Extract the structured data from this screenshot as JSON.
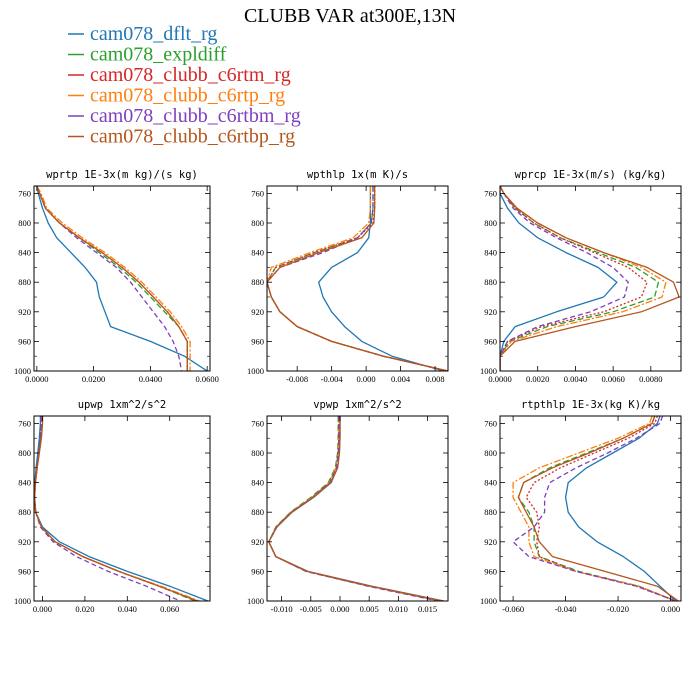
{
  "title": "CLUBB VAR at300E,13N",
  "series": [
    {
      "name": "cam078_dflt_rg",
      "color": "#1f77b4",
      "dash": ""
    },
    {
      "name": "cam078_expldiff",
      "color": "#2ca02c",
      "dash": "6,3"
    },
    {
      "name": "cam078_clubb_c6rtm_rg",
      "color": "#d62728",
      "dash": "2,2"
    },
    {
      "name": "cam078_clubb_c6rtp_rg",
      "color": "#ff7f0e",
      "dash": "7,2,2,2"
    },
    {
      "name": "cam078_clubb_c6rtbm_rg",
      "color": "#7f3fbf",
      "dash": "5,3"
    },
    {
      "name": "cam078_clubb_c6rtbp_rg",
      "color": "#b5561e",
      "dash": ""
    }
  ],
  "chart_data": [
    {
      "type": "line",
      "title": "wprtp  1E-3x(m kg)/(s kg)",
      "xlim": [
        -0.001,
        0.061
      ],
      "xticks": [
        0.0,
        0.02,
        0.04,
        0.06
      ],
      "xtick_labels": [
        "0.0000",
        "0.0200",
        "0.0400",
        "0.0600"
      ],
      "ylim": [
        1000,
        750
      ],
      "yticks": [
        760,
        800,
        840,
        880,
        920,
        960,
        1000
      ],
      "y": [
        750,
        760,
        780,
        800,
        820,
        840,
        860,
        880,
        900,
        920,
        940,
        960,
        980,
        1000
      ],
      "series": [
        [
          0.0,
          0.0005,
          0.002,
          0.004,
          0.007,
          0.012,
          0.017,
          0.021,
          0.022,
          0.024,
          0.026,
          0.04,
          0.052,
          0.06
        ],
        [
          0.0,
          0.001,
          0.003,
          0.008,
          0.015,
          0.022,
          0.029,
          0.035,
          0.04,
          0.045,
          0.05,
          0.053,
          0.053,
          0.053
        ],
        [
          0.0,
          0.001,
          0.003,
          0.008,
          0.015,
          0.023,
          0.03,
          0.036,
          0.041,
          0.046,
          0.05,
          0.053,
          0.053,
          0.053
        ],
        [
          0.0,
          0.0015,
          0.0035,
          0.009,
          0.016,
          0.024,
          0.031,
          0.037,
          0.042,
          0.047,
          0.051,
          0.054,
          0.054,
          0.054
        ],
        [
          0.0,
          0.001,
          0.003,
          0.008,
          0.014,
          0.021,
          0.028,
          0.033,
          0.037,
          0.041,
          0.045,
          0.048,
          0.05,
          0.051
        ],
        [
          0.0,
          0.001,
          0.003,
          0.008,
          0.015,
          0.023,
          0.03,
          0.036,
          0.041,
          0.046,
          0.05,
          0.053,
          0.053,
          0.053
        ]
      ]
    },
    {
      "type": "line",
      "title": "wpthlp  1x(m K)/s",
      "xlim": [
        -0.0115,
        0.0095
      ],
      "xticks": [
        -0.008,
        -0.004,
        0.0,
        0.004,
        0.008
      ],
      "xtick_labels": [
        "-0.008",
        "-0.004",
        "0.000",
        "0.004",
        "0.008"
      ],
      "ylim": [
        1000,
        750
      ],
      "yticks": [
        760,
        800,
        840,
        880,
        920,
        960,
        1000
      ],
      "y": [
        750,
        760,
        780,
        800,
        820,
        840,
        860,
        880,
        900,
        920,
        940,
        960,
        980,
        1000
      ],
      "series": [
        [
          0.0005,
          0.0005,
          0.0005,
          0.0005,
          0.0003,
          -0.001,
          -0.004,
          -0.0055,
          -0.005,
          -0.004,
          -0.0025,
          -0.0005,
          0.003,
          0.009
        ],
        [
          0.0008,
          0.0008,
          0.0008,
          0.0006,
          -0.001,
          -0.006,
          -0.0105,
          -0.0115,
          -0.011,
          -0.01,
          -0.008,
          -0.004,
          0.002,
          0.0095
        ],
        [
          0.001,
          0.001,
          0.001,
          0.0008,
          -0.001,
          -0.006,
          -0.0105,
          -0.0115,
          -0.011,
          -0.01,
          -0.008,
          -0.004,
          0.002,
          0.0095
        ],
        [
          0.0005,
          0.0005,
          0.0005,
          0.0003,
          -0.0015,
          -0.0065,
          -0.011,
          -0.0115,
          -0.011,
          -0.01,
          -0.008,
          -0.004,
          0.002,
          0.0095
        ],
        [
          0.0008,
          0.0008,
          0.0008,
          0.0006,
          -0.001,
          -0.005,
          -0.01,
          -0.0115,
          -0.011,
          -0.01,
          -0.008,
          -0.004,
          0.002,
          0.0095
        ],
        [
          0.001,
          0.001,
          0.001,
          0.0009,
          -0.0005,
          -0.0055,
          -0.01,
          -0.0115,
          -0.011,
          -0.01,
          -0.008,
          -0.004,
          0.002,
          0.0095
        ]
      ]
    },
    {
      "type": "line",
      "title": "wprcp  1E-3x(m/s) (kg/kg)",
      "xlim": [
        0.0,
        0.0096
      ],
      "xticks": [
        0.0,
        0.002,
        0.004,
        0.006,
        0.008
      ],
      "xtick_labels": [
        "0.0000",
        "0.0020",
        "0.0040",
        "0.0060",
        "0.0080"
      ],
      "ylim": [
        1000,
        750
      ],
      "yticks": [
        760,
        800,
        840,
        880,
        920,
        960,
        1000
      ],
      "y": [
        750,
        760,
        780,
        800,
        820,
        840,
        860,
        880,
        900,
        920,
        940,
        960,
        980,
        1000
      ],
      "series": [
        [
          0.0,
          0.0,
          0.0004,
          0.001,
          0.002,
          0.0035,
          0.0052,
          0.0062,
          0.0055,
          0.003,
          0.0008,
          0.0002,
          0.0,
          0.0
        ],
        [
          0.0,
          0.0002,
          0.0008,
          0.0018,
          0.0032,
          0.0052,
          0.0072,
          0.0084,
          0.0082,
          0.006,
          0.0025,
          0.0005,
          0.0,
          0.0
        ],
        [
          0.0,
          0.0002,
          0.0008,
          0.0018,
          0.0032,
          0.005,
          0.0068,
          0.0078,
          0.0075,
          0.0055,
          0.0022,
          0.0004,
          0.0,
          0.0
        ],
        [
          0.0,
          0.0002,
          0.0009,
          0.002,
          0.0035,
          0.0055,
          0.0075,
          0.0088,
          0.0086,
          0.0065,
          0.003,
          0.0006,
          0.0,
          0.0
        ],
        [
          0.0,
          0.0002,
          0.0007,
          0.0016,
          0.003,
          0.0046,
          0.006,
          0.0068,
          0.0066,
          0.0048,
          0.002,
          0.0004,
          0.0,
          0.0
        ],
        [
          0.0,
          0.0002,
          0.0009,
          0.002,
          0.0035,
          0.0055,
          0.0078,
          0.0092,
          0.0095,
          0.0075,
          0.004,
          0.0008,
          0.0,
          0.0
        ]
      ]
    },
    {
      "type": "line",
      "title": "upwp  1xm^2/s^2",
      "xlim": [
        -0.004,
        0.079
      ],
      "xticks": [
        0.0,
        0.02,
        0.04,
        0.06
      ],
      "xtick_labels": [
        "0.000",
        "0.020",
        "0.040",
        "0.060"
      ],
      "ylim": [
        1000,
        750
      ],
      "yticks": [
        760,
        800,
        840,
        880,
        920,
        960,
        1000
      ],
      "y": [
        750,
        760,
        780,
        800,
        820,
        840,
        860,
        880,
        900,
        920,
        940,
        960,
        980,
        1000
      ],
      "series": [
        [
          -0.001,
          -0.001,
          -0.0015,
          -0.0022,
          -0.003,
          -0.0036,
          -0.0038,
          -0.0032,
          0.0,
          0.008,
          0.022,
          0.04,
          0.06,
          0.078
        ],
        [
          -0.0005,
          -0.0005,
          -0.001,
          -0.0018,
          -0.0026,
          -0.0034,
          -0.0037,
          -0.0032,
          -0.0005,
          0.006,
          0.019,
          0.036,
          0.055,
          0.072
        ],
        [
          -0.0005,
          -0.0005,
          -0.001,
          -0.0018,
          -0.0026,
          -0.0034,
          -0.0037,
          -0.0032,
          -0.0005,
          0.006,
          0.019,
          0.036,
          0.055,
          0.073
        ],
        [
          0.0,
          0.0,
          -0.0005,
          -0.0015,
          -0.0025,
          -0.0033,
          -0.0037,
          -0.0032,
          -0.0005,
          0.006,
          0.019,
          0.036,
          0.056,
          0.074
        ],
        [
          -0.0005,
          -0.0005,
          -0.001,
          -0.0018,
          -0.0026,
          -0.0034,
          -0.0037,
          -0.0032,
          -0.001,
          0.005,
          0.016,
          0.031,
          0.049,
          0.065
        ],
        [
          0.0,
          0.0,
          -0.0005,
          -0.0015,
          -0.0025,
          -0.0033,
          -0.0037,
          -0.0032,
          -0.0005,
          0.006,
          0.019,
          0.036,
          0.055,
          0.073
        ]
      ]
    },
    {
      "type": "line",
      "title": "vpwp  1xm^2/s^2",
      "xlim": [
        -0.0125,
        0.0185
      ],
      "xticks": [
        -0.01,
        -0.005,
        0.0,
        0.005,
        0.01,
        0.015
      ],
      "xtick_labels": [
        "-0.010",
        "-0.005",
        "0.000",
        "0.005",
        "0.010",
        "0.015"
      ],
      "ylim": [
        1000,
        750
      ],
      "yticks": [
        760,
        800,
        840,
        880,
        920,
        960,
        1000
      ],
      "y": [
        750,
        760,
        780,
        800,
        820,
        840,
        860,
        880,
        900,
        920,
        940,
        960,
        980,
        1000
      ],
      "series": [
        [
          0.0,
          0.0,
          0.0,
          -0.0001,
          -0.0004,
          -0.0015,
          -0.0045,
          -0.0082,
          -0.0108,
          -0.0122,
          -0.011,
          -0.0055,
          0.0055,
          0.0178
        ],
        [
          -0.0003,
          -0.0003,
          -0.0003,
          -0.0004,
          -0.0008,
          -0.002,
          -0.005,
          -0.0085,
          -0.011,
          -0.0122,
          -0.011,
          -0.0058,
          0.005,
          0.0172
        ],
        [
          -0.0002,
          -0.0002,
          -0.0002,
          -0.0003,
          -0.0007,
          -0.0018,
          -0.0048,
          -0.0084,
          -0.0109,
          -0.0122,
          -0.011,
          -0.0057,
          0.0052,
          0.0174
        ],
        [
          -0.0002,
          -0.0002,
          -0.0002,
          -0.0003,
          -0.0007,
          -0.0018,
          -0.0048,
          -0.0084,
          -0.0109,
          -0.0122,
          -0.011,
          -0.0057,
          0.0052,
          0.0176
        ],
        [
          -0.0002,
          -0.0002,
          -0.0002,
          -0.0003,
          -0.0006,
          -0.0017,
          -0.0047,
          -0.0083,
          -0.0108,
          -0.0122,
          -0.011,
          -0.0058,
          0.0048,
          0.0168
        ],
        [
          0.0,
          0.0,
          0.0,
          -0.0001,
          -0.0004,
          -0.0016,
          -0.0046,
          -0.0083,
          -0.0109,
          -0.0122,
          -0.011,
          -0.0056,
          0.0053,
          0.0176
        ]
      ]
    },
    {
      "type": "line",
      "title": "rtpthlp  1E-3x(kg K)/kg",
      "xlim": [
        -0.065,
        0.004
      ],
      "xticks": [
        -0.06,
        -0.04,
        -0.02,
        0.0
      ],
      "xtick_labels": [
        "-0.060",
        "-0.040",
        "-0.020",
        "0.000"
      ],
      "ylim": [
        1000,
        750
      ],
      "yticks": [
        760,
        800,
        840,
        880,
        920,
        960,
        1000
      ],
      "y": [
        750,
        760,
        780,
        800,
        820,
        840,
        860,
        880,
        900,
        920,
        940,
        960,
        980,
        1000
      ],
      "series": [
        [
          -0.004,
          -0.005,
          -0.012,
          -0.022,
          -0.032,
          -0.039,
          -0.04,
          -0.039,
          -0.035,
          -0.028,
          -0.018,
          -0.01,
          -0.004,
          0.002
        ],
        [
          -0.006,
          -0.007,
          -0.018,
          -0.032,
          -0.046,
          -0.056,
          -0.058,
          -0.054,
          -0.052,
          -0.052,
          -0.05,
          -0.035,
          -0.012,
          0.002
        ],
        [
          -0.005,
          -0.006,
          -0.016,
          -0.029,
          -0.042,
          -0.052,
          -0.055,
          -0.051,
          -0.05,
          -0.051,
          -0.05,
          -0.036,
          -0.013,
          0.002
        ],
        [
          -0.007,
          -0.008,
          -0.02,
          -0.035,
          -0.05,
          -0.06,
          -0.06,
          -0.057,
          -0.054,
          -0.054,
          -0.052,
          -0.036,
          -0.012,
          0.002
        ],
        [
          -0.003,
          -0.004,
          -0.013,
          -0.024,
          -0.036,
          -0.046,
          -0.048,
          -0.048,
          -0.052,
          -0.06,
          -0.054,
          -0.036,
          -0.013,
          0.002
        ],
        [
          -0.006,
          -0.007,
          -0.018,
          -0.031,
          -0.045,
          -0.056,
          -0.058,
          -0.055,
          -0.052,
          -0.05,
          -0.045,
          -0.025,
          -0.005,
          0.003
        ]
      ]
    }
  ]
}
